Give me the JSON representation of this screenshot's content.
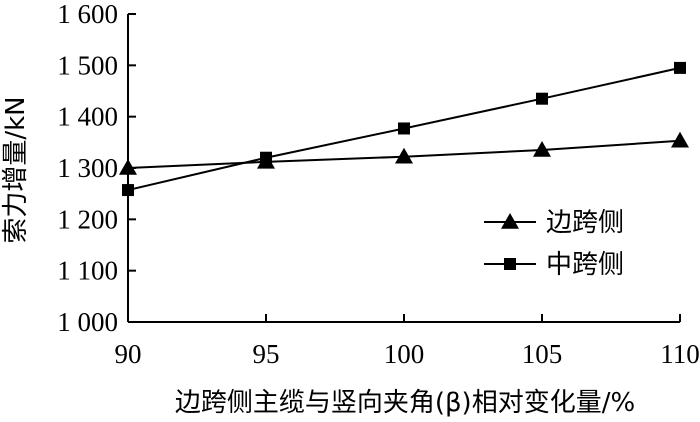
{
  "chart_data": {
    "type": "line",
    "xlabel": "边跨侧主缆与竖向夹角(β)相对变化量/%",
    "ylabel": "索力增量/kN",
    "xlim": [
      90,
      110
    ],
    "ylim": [
      1000,
      1600
    ],
    "xticks": [
      90,
      95,
      100,
      105,
      110
    ],
    "xtick_labels": [
      "90",
      "95",
      "100",
      "105",
      "110"
    ],
    "yticks": [
      1000,
      1100,
      1200,
      1300,
      1400,
      1500,
      1600
    ],
    "ytick_labels": [
      "1 000",
      "1 100",
      "1 200",
      "1 300",
      "1 400",
      "1 500",
      "1 600"
    ],
    "grid": false,
    "legend_position": "right",
    "x": [
      90,
      95,
      100,
      105,
      110
    ],
    "series": [
      {
        "name": "边跨侧",
        "marker": "triangle",
        "color": "#000000",
        "values": [
          1300,
          1312,
          1322,
          1335,
          1353
        ]
      },
      {
        "name": "中跨侧",
        "marker": "square",
        "color": "#000000",
        "values": [
          1257,
          1320,
          1377,
          1435,
          1495
        ]
      }
    ]
  }
}
